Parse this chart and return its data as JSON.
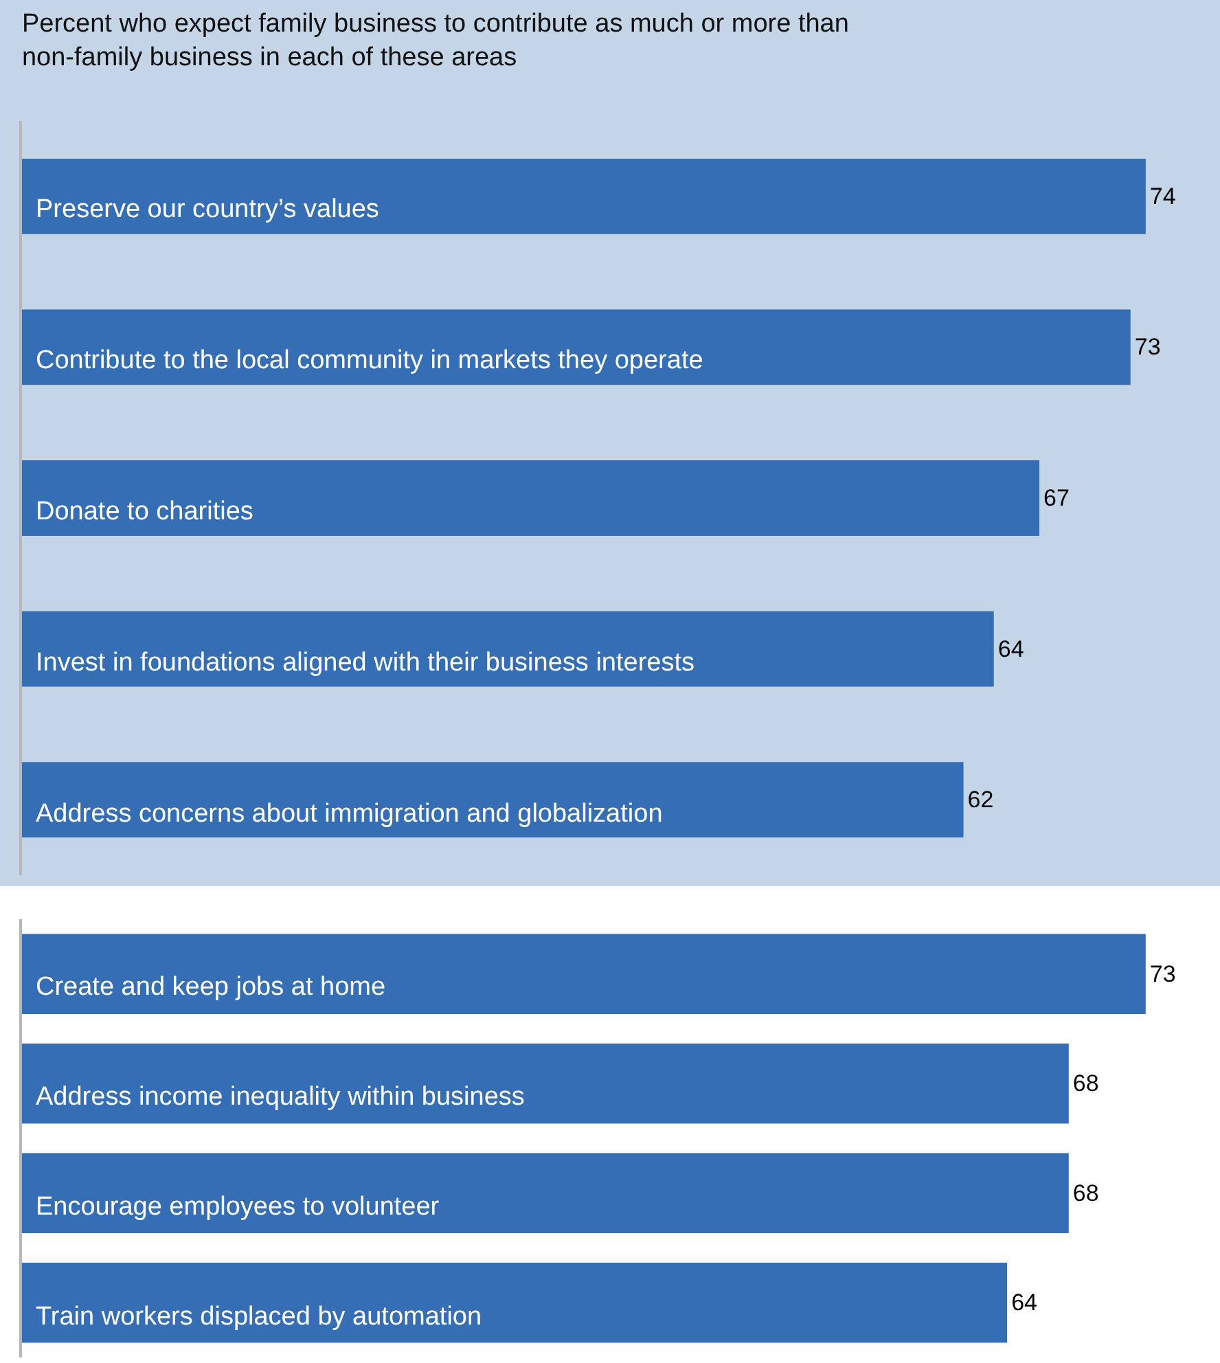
{
  "chart_data": [
    {
      "type": "bar",
      "orientation": "horizontal",
      "title": "Percent who expect family business to contribute as much or more than non-family business in each of these areas",
      "categories": [
        "Preserve our country’s values",
        "Contribute to the local community in markets they operate",
        "Donate to charities",
        "Invest in foundations aligned with their business interests",
        "Address concerns about immigration and globalization"
      ],
      "values": [
        74,
        73,
        67,
        64,
        62
      ],
      "color": "#356eb4",
      "data_labels": true
    },
    {
      "type": "bar",
      "orientation": "horizontal",
      "categories": [
        "Create and keep jobs at home",
        "Address income inequality within business",
        "Encourage employees to volunteer",
        "Train workers displaced by automation"
      ],
      "values": [
        73,
        68,
        68,
        64
      ],
      "color": "#356eb4",
      "data_labels": true
    }
  ]
}
